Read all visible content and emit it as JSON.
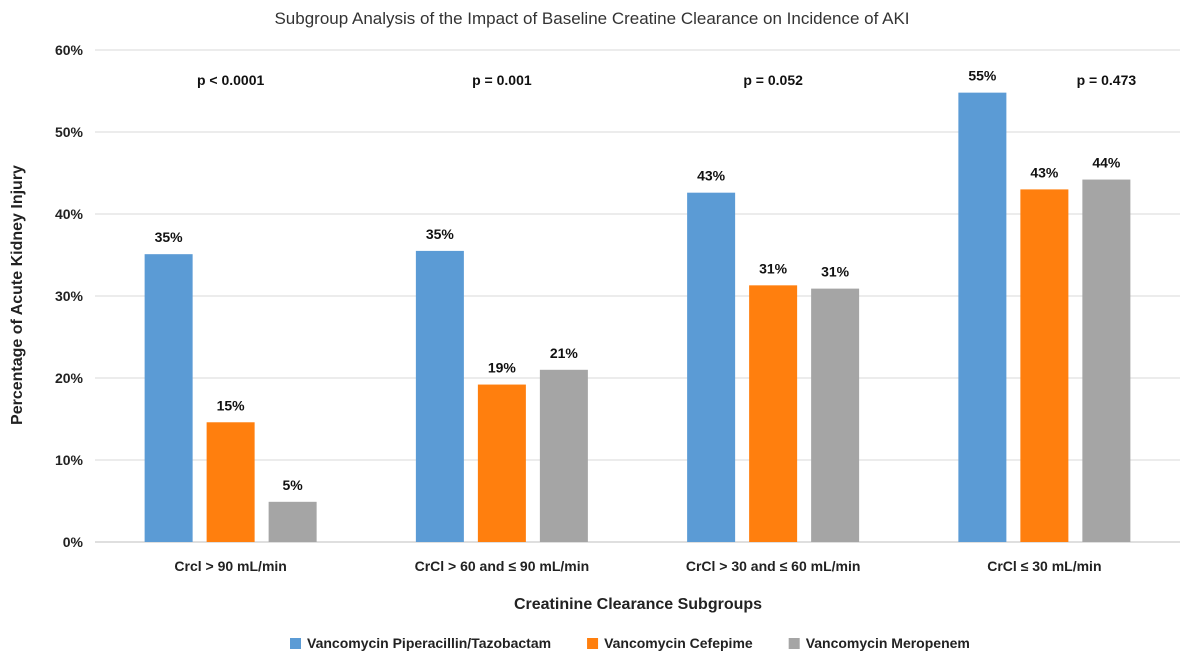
{
  "chart_data": {
    "type": "bar",
    "title": "Subgroup Analysis of the Impact of Baseline Creatine Clearance on Incidence of AKI",
    "xlabel": "Creatinine Clearance Subgroups",
    "ylabel": "Percentage of Acute Kidney Injury",
    "ylim": [
      0,
      60
    ],
    "yticks": [
      "0%",
      "10%",
      "20%",
      "30%",
      "40%",
      "50%",
      "60%"
    ],
    "ytick_values": [
      0,
      10,
      20,
      30,
      40,
      50,
      60
    ],
    "grid": true,
    "legend_position": "bottom",
    "categories": [
      "Crcl > 90 mL/min",
      "CrCl > 60 and ≤ 90 mL/min",
      "CrCl > 30 and ≤ 60 mL/min",
      "CrCl ≤ 30 mL/min"
    ],
    "p_values": [
      "p < 0.0001",
      "p = 0.001",
      "p = 0.052",
      "p = 0.473"
    ],
    "series": [
      {
        "name": "Vancomycin Piperacillin/Tazobactam",
        "color": "#5b9bd5",
        "values": [
          35.1,
          35.5,
          42.6,
          54.8
        ],
        "labels": [
          "35%",
          "35%",
          "43%",
          "55%"
        ]
      },
      {
        "name": "Vancomycin Cefepime",
        "color": "#ff7f0e",
        "values": [
          14.6,
          19.2,
          31.3,
          43.0
        ],
        "labels": [
          "15%",
          "19%",
          "31%",
          "43%"
        ]
      },
      {
        "name": "Vancomycin Meropenem",
        "color": "#a5a5a5",
        "values": [
          4.9,
          21.0,
          30.9,
          44.2
        ],
        "labels": [
          "5%",
          "21%",
          "31%",
          "44%"
        ]
      }
    ]
  }
}
